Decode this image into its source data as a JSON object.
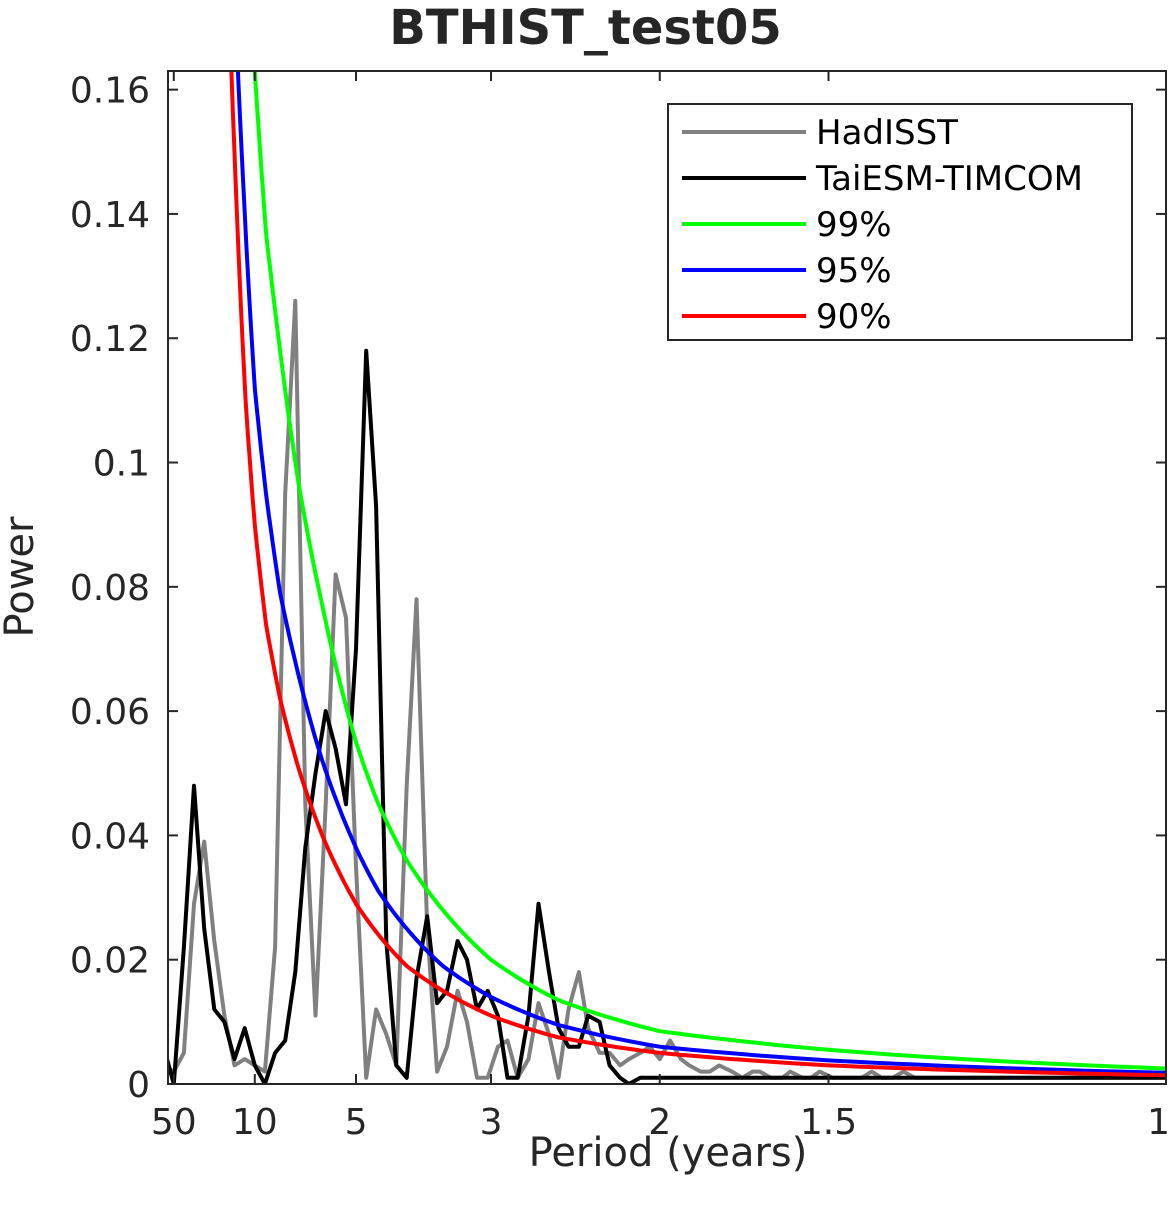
{
  "chart_data": {
    "type": "line",
    "title": "BTHIST_test05",
    "xlabel": "Period (years)",
    "ylabel": "Power",
    "x_axis": "frequency (1/period), ticks labeled in period (years)",
    "x_ticks": [
      {
        "period": 50,
        "label": "50"
      },
      {
        "period": 10,
        "label": "10"
      },
      {
        "period": 5,
        "label": "5"
      },
      {
        "period": 3,
        "label": "3"
      },
      {
        "period": 2,
        "label": "2"
      },
      {
        "period": 1.5,
        "label": "1.5"
      },
      {
        "period": 1,
        "label": "1"
      }
    ],
    "y_ticks": [
      "0",
      "0.02",
      "0.04",
      "0.06",
      "0.08",
      "0.1",
      "0.12",
      "0.14",
      "0.16"
    ],
    "xlim_period": [
      70,
      1
    ],
    "ylim": [
      0,
      0.163
    ],
    "grid": false,
    "legend_position": "top-right",
    "series": [
      {
        "name": "HadISST",
        "color": "#808080",
        "period": [
          100,
          50,
          33.33,
          25,
          20,
          16.67,
          14.29,
          12.5,
          11.11,
          10,
          9.09,
          8.33,
          7.69,
          7.14,
          6.67,
          6.25,
          5.88,
          5.56,
          5.26,
          5,
          4.76,
          4.55,
          4.35,
          4.17,
          4,
          3.85,
          3.7,
          3.57,
          3.45,
          3.33,
          3.23,
          3.13,
          3.03,
          2.94,
          2.86,
          2.78,
          2.7,
          2.63,
          2.56,
          2.5,
          2.44,
          2.38,
          2.33,
          2.27,
          2.22,
          2.17,
          2.13,
          2.08,
          2.04,
          2,
          1.96,
          1.92,
          1.89,
          1.85,
          1.82,
          1.79,
          1.75,
          1.72,
          1.69,
          1.67,
          1.64,
          1.61,
          1.59,
          1.56,
          1.54,
          1.52,
          1.49,
          1.47,
          1.45,
          1.43,
          1.41,
          1.39,
          1.37,
          1.35,
          1.33,
          1.32,
          1.3,
          1.28,
          1.27,
          1.25,
          1.23,
          1.22,
          1.2,
          1.19,
          1.18,
          1.16,
          1.15,
          1.14,
          1.12,
          1.11,
          1.1,
          1.09,
          1.08,
          1.06,
          1.05,
          1.04,
          1.03,
          1.02,
          1.01,
          1
        ],
        "values": [
          0.003,
          0.002,
          0.005,
          0.029,
          0.039,
          0.023,
          0.011,
          0.003,
          0.004,
          0.003,
          0.002,
          0.022,
          0.095,
          0.126,
          0.045,
          0.011,
          0.045,
          0.082,
          0.075,
          0.035,
          0.001,
          0.012,
          0.008,
          0.003,
          0.048,
          0.078,
          0.025,
          0.002,
          0.006,
          0.015,
          0.01,
          0.001,
          0.001,
          0.006,
          0.007,
          0.001,
          0.004,
          0.013,
          0.008,
          0.001,
          0.012,
          0.018,
          0.009,
          0.005,
          0.005,
          0.003,
          0.004,
          0.005,
          0.006,
          0.004,
          0.007,
          0.004,
          0.003,
          0.002,
          0.002,
          0.003,
          0.002,
          0.001,
          0.002,
          0.002,
          0.001,
          0.001,
          0.002,
          0.001,
          0.001,
          0.002,
          0.001,
          0.001,
          0.001,
          0.001,
          0.002,
          0.001,
          0.001,
          0.002,
          0.001,
          0.001,
          0.001,
          0.001,
          0.001,
          0.001,
          0.001,
          0.001,
          0.001,
          0.001,
          0.001,
          0.001,
          0.001,
          0.001,
          0.001,
          0.001,
          0.001,
          0.001,
          0.001,
          0.001,
          0.001,
          0.001,
          0.001,
          0.001,
          0.001,
          0.001
        ]
      },
      {
        "name": "TaiESM-TIMCOM",
        "color": "#000000",
        "period": [
          100,
          50,
          33.33,
          25,
          20,
          16.67,
          14.29,
          12.5,
          11.11,
          10,
          9.09,
          8.33,
          7.69,
          7.14,
          6.67,
          6.25,
          5.88,
          5.56,
          5.26,
          5,
          4.76,
          4.55,
          4.35,
          4.17,
          4,
          3.85,
          3.7,
          3.57,
          3.45,
          3.33,
          3.23,
          3.13,
          3.03,
          2.94,
          2.86,
          2.78,
          2.7,
          2.63,
          2.56,
          2.5,
          2.44,
          2.38,
          2.33,
          2.27,
          2.22,
          2.17,
          2.13,
          2.08,
          2.04,
          2,
          1.96,
          1.92,
          1.89,
          1.85,
          1.82,
          1.79,
          1.75,
          1.72,
          1.69,
          1.67,
          1.64,
          1.61,
          1.59,
          1.56,
          1.54,
          1.52,
          1.49,
          1.47,
          1.45,
          1.43,
          1.41,
          1.39,
          1.37,
          1.35,
          1.33,
          1.32,
          1.3,
          1.28,
          1.27,
          1.25,
          1.23,
          1.22,
          1.2,
          1.19,
          1.18,
          1.16,
          1.15,
          1.14,
          1.12,
          1.11,
          1.1,
          1.09,
          1.08,
          1.06,
          1.05,
          1.04,
          1.03,
          1.02,
          1.01,
          1
        ],
        "values": [
          0.006,
          0.0,
          0.022,
          0.048,
          0.025,
          0.012,
          0.01,
          0.004,
          0.009,
          0.003,
          0.0,
          0.005,
          0.007,
          0.018,
          0.038,
          0.05,
          0.06,
          0.054,
          0.045,
          0.07,
          0.118,
          0.093,
          0.023,
          0.003,
          0.001,
          0.017,
          0.027,
          0.013,
          0.015,
          0.023,
          0.02,
          0.012,
          0.015,
          0.011,
          0.001,
          0.001,
          0.011,
          0.029,
          0.018,
          0.009,
          0.006,
          0.006,
          0.011,
          0.01,
          0.003,
          0.001,
          0.0,
          0.001,
          0.001,
          0.001,
          0.001,
          0.001,
          0.001,
          0.001,
          0.001,
          0.001,
          0.001,
          0.001,
          0.001,
          0.001,
          0.001,
          0.001,
          0.001,
          0.001,
          0.001,
          0.001,
          0.001,
          0.001,
          0.001,
          0.001,
          0.001,
          0.001,
          0.001,
          0.001,
          0.001,
          0.001,
          0.001,
          0.001,
          0.001,
          0.001,
          0.001,
          0.001,
          0.001,
          0.001,
          0.001,
          0.001,
          0.001,
          0.001,
          0.001,
          0.001,
          0.001,
          0.001,
          0.001,
          0.001,
          0.001,
          0.001,
          0.001,
          0.001,
          0.001,
          0.001
        ]
      },
      {
        "name": "99%",
        "color": "#00ff00",
        "period": [
          10,
          9,
          8,
          7,
          6,
          5,
          4.5,
          4,
          3.5,
          3,
          2.5,
          2,
          1.5,
          1.25,
          1
        ],
        "values": [
          0.163,
          0.137,
          0.118,
          0.097,
          0.077,
          0.055,
          0.045,
          0.036,
          0.028,
          0.02,
          0.0135,
          0.0085,
          0.0055,
          0.004,
          0.0025
        ]
      },
      {
        "name": "95%",
        "color": "#0000ff",
        "period": [
          12,
          10,
          9,
          8,
          7,
          6,
          5,
          4.5,
          4,
          3.5,
          3,
          2.5,
          2,
          1.5,
          1.25,
          1
        ],
        "values": [
          0.163,
          0.112,
          0.095,
          0.079,
          0.066,
          0.052,
          0.038,
          0.031,
          0.025,
          0.019,
          0.014,
          0.0095,
          0.006,
          0.0038,
          0.0028,
          0.0018
        ]
      },
      {
        "name": "90%",
        "color": "#ff0000",
        "period": [
          13,
          11,
          10,
          9,
          8,
          7,
          6,
          5,
          4.5,
          4,
          3.5,
          3,
          2.5,
          2,
          1.5,
          1.25,
          1
        ],
        "values": [
          0.163,
          0.11,
          0.09,
          0.074,
          0.062,
          0.051,
          0.04,
          0.029,
          0.024,
          0.019,
          0.015,
          0.011,
          0.0075,
          0.005,
          0.003,
          0.0022,
          0.0014
        ]
      }
    ]
  }
}
